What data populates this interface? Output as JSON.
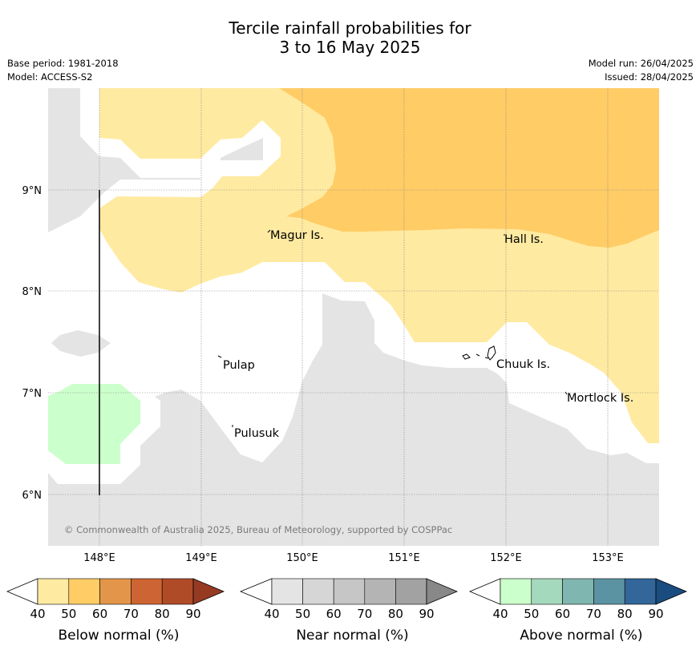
{
  "header": {
    "title_line1": "Tercile rainfall probabilities for",
    "title_line2": "3 to 16 May 2025",
    "base_period": "Base period: 1981-2018",
    "model": "Model: ACCESS-S2",
    "model_run": "Model run: 26/04/2025",
    "issued": "Issued: 28/04/2025"
  },
  "map": {
    "lon_labels": [
      "148°E",
      "149°E",
      "150°E",
      "151°E",
      "152°E",
      "153°E"
    ],
    "lat_labels": [
      "9°N",
      "8°N",
      "7°N",
      "6°N"
    ],
    "places": [
      "Magur Is.",
      "Hall Is.",
      "Pulap",
      "Chuuk Is.",
      "Mortlock Is.",
      "Pulusuk"
    ],
    "copyright": "© Commonwealth of Australia 2025, Bureau of Meteorology, supported by COSPPac",
    "colors": {
      "below_40": "#ffeaa1",
      "below_50": "#ffcc66",
      "near_40": "#e4e4e4",
      "above_40": "#cbffcb"
    }
  },
  "colorbars": [
    {
      "label": "Below normal (%)",
      "ticks": [
        "40",
        "50",
        "60",
        "70",
        "80",
        "90"
      ],
      "colors": [
        "#ffeaa1",
        "#ffcc66",
        "#e3964a",
        "#cd6433",
        "#b04b28",
        "#963a22"
      ]
    },
    {
      "label": "Near normal (%)",
      "ticks": [
        "40",
        "50",
        "60",
        "70",
        "80",
        "90"
      ],
      "colors": [
        "#e4e4e4",
        "#d6d6d6",
        "#c6c6c6",
        "#b4b4b4",
        "#a2a2a2",
        "#888888"
      ]
    },
    {
      "label": "Above normal (%)",
      "ticks": [
        "40",
        "50",
        "60",
        "70",
        "80",
        "90"
      ],
      "colors": [
        "#cbffcb",
        "#a5d9bd",
        "#80b6b0",
        "#5c93a2",
        "#336699",
        "#1a4c80"
      ]
    }
  ]
}
